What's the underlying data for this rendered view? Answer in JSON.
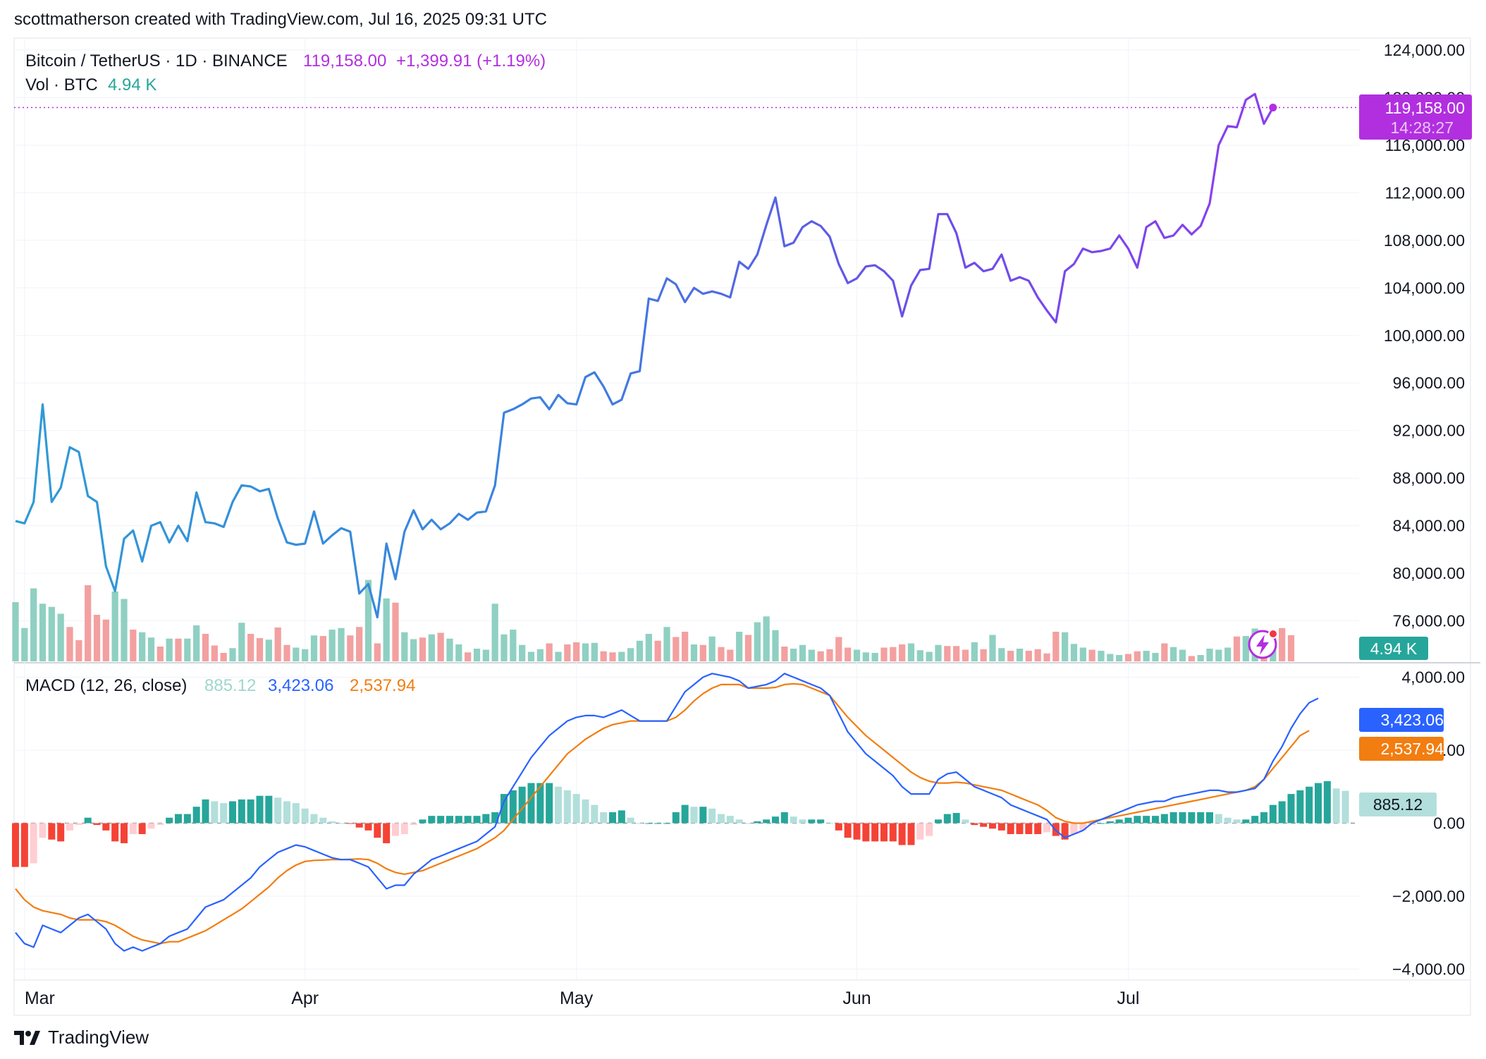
{
  "header": {
    "credit": "scottmatherson created with TradingView.com, Jul 16, 2025 09:31 UTC"
  },
  "legend": {
    "symbol": "Bitcoin / TetherUS · 1D · BINANCE",
    "price": "119,158.00",
    "change": "+1,399.91 (+1.19%)",
    "vol_label": "Vol · BTC",
    "vol_value": "4.94 K",
    "macd_label": "MACD (12, 26, close)",
    "macd_hist": "885.12",
    "macd_line": "3,423.06",
    "macd_signal": "2,537.94"
  },
  "badges": {
    "price": "119,158.00",
    "countdown": "14:28:27",
    "volume": "4.94 K",
    "macd_line": "3,423.06",
    "macd_signal": "2,537.94",
    "macd_hist": "885.12"
  },
  "colors": {
    "price_line_start": "#2f9bd6",
    "price_line_end": "#8b3ff0",
    "price_badge": "#b22fe0",
    "vol_up": "#8fd0c2",
    "vol_down": "#f3a0a0",
    "macd_line": "#2962ff",
    "signal_line": "#f27d10",
    "hist_up_strong": "#26a69a",
    "hist_up_weak": "#b2dfdb",
    "hist_down_strong": "#f44336",
    "hist_down_weak": "#ffcdd2",
    "vol_badge": "#26a69a",
    "hist_badge": "#b2dfdb",
    "grid": "#f0f3fa",
    "text": "#131722"
  },
  "footer": {
    "brand": "TradingView",
    "logo_icon": "tradingview-logo-icon"
  },
  "chart_data": [
    {
      "type": "line",
      "title": "Bitcoin / TetherUS · 1D · BINANCE",
      "x_range": [
        "2025-02-28",
        "2025-07-16"
      ],
      "x_ticks": [
        {
          "label": "Mar",
          "date": "2025-03-01"
        },
        {
          "label": "Apr",
          "date": "2025-04-01"
        },
        {
          "label": "May",
          "date": "2025-05-01"
        },
        {
          "label": "Jun",
          "date": "2025-06-01"
        },
        {
          "label": "Jul",
          "date": "2025-07-01"
        }
      ],
      "ylim": [
        72600,
        125000
      ],
      "y_ticks": [
        "76,000.00",
        "80,000.00",
        "84,000.00",
        "88,000.00",
        "92,000.00",
        "96,000.00",
        "100,000.00",
        "104,000.00",
        "108,000.00",
        "112,000.00",
        "116,000.00",
        "120,000.00",
        "124,000.00"
      ],
      "y_tick_values": [
        76000,
        80000,
        84000,
        88000,
        92000,
        96000,
        100000,
        104000,
        108000,
        112000,
        116000,
        120000,
        124000
      ],
      "grid": true,
      "current_price": 119158,
      "series": [
        {
          "name": "BTCUSDT",
          "start_date": "2025-02-28",
          "values": [
            84400,
            84200,
            86000,
            94200,
            86000,
            87200,
            90600,
            90200,
            86500,
            86000,
            80600,
            78500,
            82900,
            83600,
            81000,
            84000,
            84300,
            82600,
            84000,
            82700,
            86800,
            84300,
            84200,
            83900,
            86000,
            87400,
            87300,
            86900,
            87100,
            84600,
            82600,
            82400,
            82500,
            85200,
            82500,
            83200,
            83800,
            83500,
            78300,
            79100,
            76300,
            82500,
            79500,
            83500,
            85300,
            83700,
            84500,
            83700,
            84200,
            85000,
            84500,
            85100,
            85200,
            87400,
            93500,
            93800,
            94200,
            94700,
            94800,
            93800,
            95000,
            94300,
            94200,
            96500,
            96900,
            95700,
            94200,
            94600,
            96800,
            97000,
            103100,
            102900,
            104800,
            104300,
            102800,
            104000,
            103500,
            103700,
            103500,
            103200,
            106200,
            105600,
            106800,
            109300,
            111600,
            107500,
            107800,
            109100,
            109600,
            109200,
            108300,
            106000,
            104400,
            104800,
            105800,
            105900,
            105400,
            104600,
            101600,
            104200,
            105500,
            105600,
            110200,
            110200,
            108600,
            105700,
            106100,
            105400,
            105600,
            106800,
            104600,
            104900,
            104600,
            103200,
            102100,
            101100,
            105400,
            106000,
            107300,
            107000,
            107100,
            107300,
            108400,
            107300,
            105700,
            109100,
            109600,
            108200,
            108400,
            109300,
            108500,
            109200,
            111100,
            116000,
            117600,
            117500,
            119800,
            120300,
            117800,
            119158
          ]
        }
      ]
    },
    {
      "type": "bar",
      "title": "Vol · BTC",
      "note": "daily volume in thousands of BTC; up = close >= previous close",
      "ylim": [
        0,
        24
      ],
      "start_date": "2025-02-28",
      "values": [
        11.2,
        6.3,
        13.8,
        10.9,
        10.3,
        9.0,
        6.5,
        4.0,
        14.4,
        8.8,
        7.9,
        13.2,
        11.8,
        6.0,
        5.5,
        4.5,
        2.8,
        4.3,
        4.3,
        4.3,
        6.8,
        5.2,
        3.0,
        1.6,
        2.5,
        7.3,
        5.2,
        4.4,
        4.1,
        6.4,
        3.1,
        2.6,
        2.3,
        4.9,
        4.8,
        6.0,
        6.3,
        4.9,
        6.5,
        15.4,
        3.4,
        11.9,
        11.1,
        5.5,
        4.2,
        4.5,
        5.1,
        5.4,
        4.3,
        3.2,
        1.7,
        2.4,
        2.2,
        10.9,
        5.1,
        6.0,
        3.1,
        1.8,
        2.3,
        3.4,
        1.8,
        3.2,
        3.6,
        3.4,
        3.5,
        1.9,
        1.7,
        1.8,
        2.5,
        3.9,
        5.2,
        3.9,
        6.5,
        4.6,
        5.6,
        3.2,
        3.1,
        4.7,
        2.7,
        2.2,
        5.6,
        5.0,
        7.4,
        8.5,
        5.9,
        2.8,
        2.4,
        3.1,
        2.2,
        1.9,
        2.3,
        4.6,
        2.6,
        2.2,
        1.7,
        1.6,
        2.6,
        2.7,
        3.2,
        3.4,
        2.1,
        1.8,
        3.1,
        2.9,
        2.9,
        2.2,
        3.6,
        2.3,
        5.0,
        2.5,
        2.0,
        2.4,
        2.0,
        2.3,
        1.5,
        5.6,
        5.5,
        3.3,
        2.6,
        2.2,
        2.0,
        1.4,
        1.2,
        1.4,
        1.9,
        2.0,
        1.6,
        3.4,
        2.7,
        2.2,
        1.0,
        1.2,
        2.4,
        2.2,
        2.6,
        4.7,
        4.8,
        6.2,
        1.8,
        5.6,
        6.3,
        4.94
      ],
      "up": [
        true,
        true,
        true,
        true,
        true,
        true,
        false,
        false,
        false,
        false,
        false,
        true,
        true,
        false,
        true,
        true,
        false,
        true,
        false,
        true,
        true,
        false,
        false,
        false,
        true,
        true,
        false,
        false,
        true,
        false,
        false,
        true,
        true,
        true,
        false,
        true,
        true,
        false,
        false,
        true,
        false,
        true,
        false,
        true,
        true,
        false,
        true,
        false,
        true,
        true,
        false,
        true,
        true,
        true,
        true,
        true,
        true,
        true,
        true,
        false,
        true,
        false,
        false,
        true,
        true,
        false,
        false,
        true,
        true,
        true,
        true,
        false,
        true,
        false,
        false,
        true,
        false,
        true,
        false,
        false,
        true,
        false,
        true,
        true,
        true,
        false,
        true,
        true,
        true,
        false,
        false,
        false,
        false,
        true,
        true,
        true,
        false,
        false,
        false,
        true,
        true,
        true,
        true,
        false,
        false,
        false,
        true,
        false,
        true,
        true,
        false,
        true,
        false,
        false,
        false,
        false,
        true,
        true,
        true,
        false,
        true,
        true,
        true,
        false,
        false,
        true,
        true,
        false,
        true,
        true,
        false,
        true,
        true,
        true,
        true,
        false,
        true,
        true,
        false,
        true
      ],
      "last_value_label": "4.94 K"
    },
    {
      "type": "line",
      "title": "MACD (12, 26, close)",
      "ylim": [
        -4300,
        4300
      ],
      "y_ticks": [
        "4,000.00",
        "2,000.00",
        "0.00",
        "−2,000.00",
        "−4,000.00"
      ],
      "y_tick_values": [
        4000,
        2000,
        0,
        -2000,
        -4000
      ],
      "start_date": "2025-02-28",
      "series": [
        {
          "name": "MACD",
          "values": [
            -3000,
            -3300,
            -3400,
            -2800,
            -2900,
            -3000,
            -2800,
            -2600,
            -2500,
            -2700,
            -2900,
            -3300,
            -3500,
            -3400,
            -3500,
            -3400,
            -3300,
            -3100,
            -3000,
            -2900,
            -2600,
            -2300,
            -2200,
            -2100,
            -1900,
            -1700,
            -1500,
            -1200,
            -1000,
            -800,
            -700,
            -600,
            -650,
            -750,
            -850,
            -950,
            -1000,
            -1000,
            -1100,
            -1200,
            -1500,
            -1800,
            -1700,
            -1700,
            -1400,
            -1200,
            -1000,
            -900,
            -800,
            -700,
            -600,
            -500,
            -300,
            -100,
            600,
            1000,
            1400,
            1800,
            2100,
            2400,
            2600,
            2800,
            2900,
            2950,
            2950,
            2900,
            3000,
            3100,
            2950,
            2800,
            2800,
            2800,
            2800,
            3200,
            3600,
            3800,
            4000,
            4100,
            4050,
            4000,
            3900,
            3700,
            3750,
            3800,
            3900,
            4100,
            4000,
            3900,
            3800,
            3700,
            3500,
            3000,
            2500,
            2200,
            1900,
            1700,
            1500,
            1300,
            1000,
            800,
            800,
            800,
            1200,
            1350,
            1400,
            1200,
            1000,
            900,
            800,
            700,
            500,
            400,
            300,
            200,
            100,
            -200,
            -400,
            -300,
            -200,
            0,
            100,
            200,
            300,
            400,
            500,
            550,
            600,
            600,
            700,
            750,
            800,
            850,
            900,
            900,
            850,
            850,
            900,
            950,
            1200,
            1700,
            2100,
            2600,
            3000,
            3300,
            3423.06
          ]
        },
        {
          "name": "Signal",
          "values": [
            -1800,
            -2100,
            -2300,
            -2400,
            -2450,
            -2500,
            -2600,
            -2650,
            -2650,
            -2650,
            -2700,
            -2800,
            -2950,
            -3100,
            -3200,
            -3250,
            -3300,
            -3250,
            -3250,
            -3150,
            -3050,
            -2950,
            -2800,
            -2650,
            -2500,
            -2350,
            -2150,
            -1950,
            -1750,
            -1500,
            -1300,
            -1150,
            -1050,
            -1020,
            -1010,
            -1000,
            -1000,
            -990,
            -980,
            -1000,
            -1100,
            -1250,
            -1350,
            -1400,
            -1350,
            -1300,
            -1200,
            -1100,
            -1000,
            -900,
            -800,
            -700,
            -550,
            -400,
            -200,
            100,
            400,
            700,
            1000,
            1300,
            1600,
            1900,
            2100,
            2300,
            2450,
            2600,
            2700,
            2750,
            2800,
            2800,
            2800,
            2800,
            2800,
            2900,
            3100,
            3350,
            3550,
            3700,
            3800,
            3800,
            3800,
            3700,
            3700,
            3700,
            3720,
            3800,
            3820,
            3800,
            3700,
            3600,
            3500,
            3200,
            2900,
            2650,
            2400,
            2200,
            2000,
            1800,
            1600,
            1400,
            1250,
            1150,
            1100,
            1100,
            1120,
            1100,
            1050,
            1000,
            950,
            900,
            800,
            700,
            600,
            500,
            350,
            150,
            50,
            0,
            0,
            50,
            100,
            150,
            200,
            250,
            300,
            350,
            400,
            450,
            500,
            550,
            600,
            650,
            700,
            750,
            800,
            850,
            900,
            1000,
            1200,
            1500,
            1800,
            2100,
            2400,
            2537.94
          ]
        },
        {
          "name": "Histogram",
          "values": [
            -1200,
            -1200,
            -1100,
            -400,
            -450,
            -500,
            -200,
            -50,
            150,
            -50,
            -200,
            -500,
            -550,
            -300,
            -300,
            -150,
            -50,
            150,
            250,
            250,
            450,
            650,
            600,
            550,
            600,
            650,
            650,
            750,
            750,
            700,
            600,
            550,
            400,
            250,
            150,
            50,
            0,
            -10,
            -120,
            -200,
            -400,
            -550,
            -350,
            -300,
            -50,
            100,
            200,
            200,
            200,
            200,
            200,
            200,
            250,
            300,
            800,
            900,
            1000,
            1100,
            1100,
            1100,
            1000,
            900,
            800,
            650,
            500,
            300,
            300,
            350,
            150,
            0,
            0,
            0,
            0,
            300,
            500,
            450,
            450,
            400,
            250,
            200,
            100,
            0,
            50,
            100,
            180,
            300,
            180,
            100,
            100,
            100,
            0,
            -200,
            -400,
            -450,
            -500,
            -500,
            -500,
            -500,
            -600,
            -600,
            -450,
            -350,
            100,
            250,
            280,
            100,
            -50,
            -100,
            -150,
            -200,
            -300,
            -300,
            -300,
            -300,
            -250,
            -350,
            -450,
            -300,
            -200,
            -50,
            0,
            50,
            100,
            150,
            200,
            200,
            200,
            250,
            300,
            300,
            300,
            300,
            300,
            250,
            150,
            100,
            100,
            200,
            300,
            500,
            600,
            800,
            900,
            1000,
            1100,
            1150,
            950,
            885.12
          ]
        }
      ]
    }
  ]
}
